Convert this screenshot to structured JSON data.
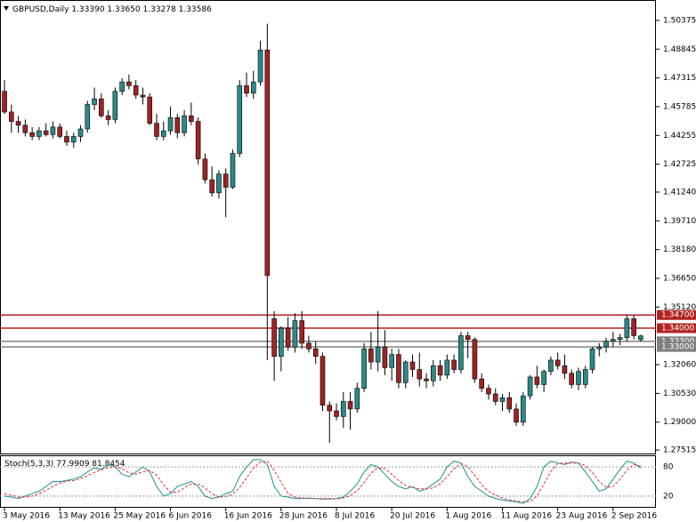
{
  "chart_data": {
    "type": "candlestick",
    "title": "GBPUSD,Daily",
    "ohlc_labels": [
      "1.33390",
      "1.33650",
      "1.33278",
      "1.33586"
    ],
    "up_color": "#2b8a8a",
    "down_color": "#9e2424",
    "open": [
      1.466,
      1.455,
      1.45,
      1.448,
      1.444,
      1.442,
      1.445,
      1.443,
      1.447,
      1.442,
      1.439,
      1.442,
      1.446,
      1.459,
      1.462,
      1.453,
      1.451,
      1.466,
      1.471,
      1.469,
      1.464,
      1.463,
      1.449,
      1.442,
      1.445,
      1.452,
      1.444,
      1.453,
      1.45,
      1.43,
      1.419,
      1.412,
      1.422,
      1.415,
      1.433,
      1.469,
      1.465,
      1.471,
      1.488,
      1.345,
      1.325,
      1.34,
      1.33,
      1.344,
      1.332,
      1.329,
      1.325,
      1.299,
      1.296,
      1.293,
      1.301,
      1.297,
      1.308,
      1.329,
      1.322,
      1.33,
      1.319,
      1.326,
      1.311,
      1.322,
      1.318,
      1.313,
      1.312,
      1.32,
      1.315,
      1.323,
      1.318,
      1.336,
      1.334,
      1.313,
      1.308,
      1.305,
      1.301,
      1.303,
      1.297,
      1.29,
      1.304,
      1.314,
      1.31,
      1.317,
      1.323,
      1.32,
      1.316,
      1.31,
      1.31,
      1.318,
      1.329,
      1.33,
      1.333,
      1.334,
      1.335,
      1.345,
      1.3339
    ],
    "high": [
      1.472,
      1.459,
      1.453,
      1.451,
      1.447,
      1.447,
      1.449,
      1.45,
      1.449,
      1.445,
      1.444,
      1.448,
      1.461,
      1.468,
      1.465,
      1.456,
      1.468,
      1.473,
      1.475,
      1.472,
      1.468,
      1.465,
      1.454,
      1.45,
      1.458,
      1.454,
      1.456,
      1.46,
      1.452,
      1.433,
      1.426,
      1.424,
      1.425,
      1.435,
      1.472,
      1.476,
      1.477,
      1.493,
      1.502,
      1.349,
      1.341,
      1.346,
      1.348,
      1.349,
      1.336,
      1.333,
      1.327,
      1.301,
      1.3,
      1.306,
      1.306,
      1.311,
      1.332,
      1.338,
      1.349,
      1.339,
      1.329,
      1.329,
      1.323,
      1.326,
      1.327,
      1.316,
      1.323,
      1.323,
      1.326,
      1.326,
      1.338,
      1.338,
      1.335,
      1.316,
      1.31,
      1.308,
      1.305,
      1.306,
      1.3,
      1.306,
      1.315,
      1.32,
      1.318,
      1.325,
      1.327,
      1.326,
      1.318,
      1.319,
      1.32,
      1.33,
      1.332,
      1.335,
      1.338,
      1.337,
      1.347,
      1.347,
      1.3365
    ],
    "low": [
      1.454,
      1.444,
      1.444,
      1.442,
      1.44,
      1.44,
      1.442,
      1.441,
      1.441,
      1.437,
      1.436,
      1.439,
      1.444,
      1.456,
      1.452,
      1.448,
      1.449,
      1.464,
      1.467,
      1.462,
      1.459,
      1.448,
      1.44,
      1.44,
      1.443,
      1.441,
      1.442,
      1.448,
      1.427,
      1.417,
      1.41,
      1.409,
      1.399,
      1.414,
      1.431,
      1.463,
      1.462,
      1.469,
      1.323,
      1.312,
      1.317,
      1.328,
      1.327,
      1.329,
      1.327,
      1.321,
      1.296,
      1.279,
      1.291,
      1.287,
      1.286,
      1.295,
      1.306,
      1.318,
      1.317,
      1.315,
      1.312,
      1.308,
      1.308,
      1.314,
      1.309,
      1.308,
      1.309,
      1.312,
      1.313,
      1.316,
      1.316,
      1.324,
      1.311,
      1.306,
      1.302,
      1.299,
      1.296,
      1.295,
      1.288,
      1.288,
      1.302,
      1.308,
      1.306,
      1.315,
      1.318,
      1.313,
      1.308,
      1.307,
      1.308,
      1.316,
      1.325,
      1.327,
      1.33,
      1.331,
      1.333,
      1.334,
      1.33278
    ],
    "close": [
      1.455,
      1.45,
      1.448,
      1.444,
      1.442,
      1.445,
      1.443,
      1.447,
      1.442,
      1.439,
      1.442,
      1.446,
      1.459,
      1.462,
      1.453,
      1.451,
      1.466,
      1.471,
      1.469,
      1.464,
      1.463,
      1.449,
      1.442,
      1.445,
      1.452,
      1.444,
      1.453,
      1.45,
      1.43,
      1.419,
      1.412,
      1.422,
      1.415,
      1.433,
      1.469,
      1.465,
      1.471,
      1.488,
      1.368,
      1.325,
      1.34,
      1.33,
      1.344,
      1.332,
      1.329,
      1.325,
      1.299,
      1.296,
      1.293,
      1.301,
      1.297,
      1.308,
      1.329,
      1.322,
      1.33,
      1.319,
      1.326,
      1.311,
      1.322,
      1.318,
      1.313,
      1.312,
      1.32,
      1.315,
      1.323,
      1.318,
      1.336,
      1.334,
      1.313,
      1.308,
      1.305,
      1.301,
      1.303,
      1.297,
      1.29,
      1.304,
      1.314,
      1.31,
      1.317,
      1.323,
      1.32,
      1.316,
      1.31,
      1.317,
      1.318,
      1.329,
      1.33,
      1.333,
      1.334,
      1.335,
      1.345,
      1.336,
      1.33586
    ],
    "xlim": [
      -0.65,
      94.2
    ],
    "xticks": [
      {
        "value": 0,
        "label": "3 May 2016"
      },
      {
        "value": 8,
        "label": "13 May 2016"
      },
      {
        "value": 16,
        "label": "25 May 2016"
      },
      {
        "value": 24,
        "label": "6 Jun 2016"
      },
      {
        "value": 32,
        "label": "16 Jun 2016"
      },
      {
        "value": 40,
        "label": "28 Jun 2016"
      },
      {
        "value": 48,
        "label": "8 Jul 2016"
      },
      {
        "value": 56,
        "label": "20 Jul 2016"
      },
      {
        "value": 64,
        "label": "1 Aug 2016"
      },
      {
        "value": 72,
        "label": "11 Aug 2016"
      },
      {
        "value": 80,
        "label": "23 Aug 2016"
      },
      {
        "value": 88,
        "label": "2 Sep 2016"
      }
    ],
    "ylim": [
      1.2733,
      1.5146
    ],
    "yticks": [
      1.50375,
      1.48845,
      1.47315,
      1.45785,
      1.44255,
      1.42725,
      {
        "value": 1.4124,
        "label": "1.41240"
      },
      {
        "value": 1.3971,
        "label": "1.39710"
      },
      {
        "value": 1.3818,
        "label": "1.38180"
      },
      {
        "value": 1.3665,
        "label": "1.36650"
      },
      {
        "value": 1.3512,
        "label": "1.35120"
      },
      {
        "value": 1.3206,
        "label": "1.32060"
      },
      {
        "value": 1.3053,
        "label": "1.30530"
      },
      {
        "value": 1.29,
        "label": "1.29000"
      },
      1.27515
    ],
    "levels": [
      {
        "value": 1.347,
        "label": "1.34700",
        "color": "#b22222"
      },
      {
        "value": 1.34,
        "label": "1.34000",
        "color": "#b22222"
      },
      {
        "value": 1.333,
        "label": "1.33300",
        "color": "#808080"
      },
      {
        "value": 1.33,
        "label": "1.33000",
        "color": "#808080"
      }
    ],
    "indicator": {
      "type": "line",
      "title": "Stoch(5,3,3)",
      "ylim": [
        -4,
        104
      ],
      "yticks": [
        80,
        20
      ],
      "series": [
        {
          "name": "%K",
          "color": "#1f8f8f",
          "values": [
            20,
            18,
            15,
            20,
            25,
            30,
            40,
            50,
            50,
            52,
            55,
            60,
            70,
            78,
            75,
            85,
            80,
            65,
            60,
            70,
            80,
            70,
            40,
            20,
            25,
            40,
            45,
            50,
            40,
            20,
            15,
            18,
            25,
            30,
            60,
            80,
            95,
            95,
            85,
            40,
            20,
            18,
            15,
            15,
            16,
            15,
            14,
            14,
            15,
            18,
            30,
            45,
            70,
            85,
            80,
            65,
            50,
            40,
            35,
            40,
            30,
            35,
            45,
            55,
            80,
            92,
            88,
            60,
            40,
            30,
            20,
            15,
            12,
            10,
            8,
            5,
            15,
            40,
            80,
            92,
            88,
            85,
            90,
            88,
            70,
            50,
            30,
            35,
            55,
            75,
            92,
            88,
            77.9909
          ]
        },
        {
          "name": "%D",
          "color": "#e03030",
          "values": [
            25,
            22,
            18,
            18,
            20,
            25,
            32,
            40,
            47,
            51,
            52,
            56,
            62,
            69,
            74,
            79,
            80,
            77,
            68,
            65,
            70,
            73,
            63,
            43,
            28,
            28,
            37,
            45,
            45,
            37,
            25,
            18,
            19,
            24,
            38,
            57,
            78,
            90,
            92,
            73,
            48,
            26,
            18,
            16,
            15,
            15,
            15,
            15,
            14,
            16,
            21,
            31,
            48,
            67,
            78,
            77,
            65,
            52,
            42,
            38,
            35,
            35,
            37,
            45,
            60,
            76,
            87,
            80,
            63,
            43,
            30,
            22,
            16,
            12,
            10,
            8,
            9,
            20,
            45,
            71,
            87,
            88,
            88,
            88,
            83,
            69,
            50,
            38,
            40,
            55,
            74,
            85,
            81.8454
          ]
        }
      ]
    }
  }
}
